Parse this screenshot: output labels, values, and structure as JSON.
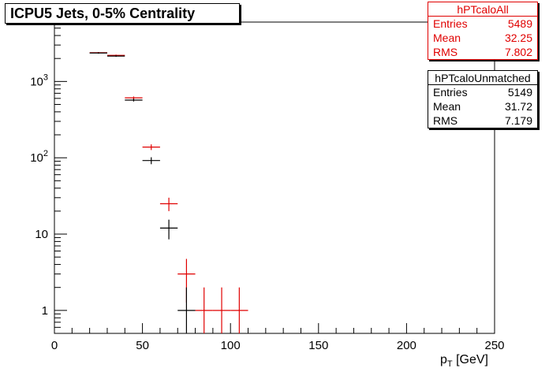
{
  "title": "ICPU5 Jets, 0-5% Centrality",
  "stats_all": {
    "name": "hPTcaloAll",
    "entries_label": "Entries",
    "entries": "5489",
    "mean_label": "Mean",
    "mean": "32.25",
    "rms_label": "RMS",
    "rms": "7.802",
    "color": "#e00000"
  },
  "stats_unmatched": {
    "name": "hPTcaloUnmatched",
    "entries_label": "Entries",
    "entries": "5149",
    "mean_label": "Mean",
    "mean": "31.72",
    "rms_label": "RMS",
    "rms": "7.179",
    "color": "#000000"
  },
  "chart_data": {
    "type": "scatter",
    "title": "ICPU5 Jets, 0-5% Centrality",
    "xlabel": "p_T [GeV]",
    "ylabel": "",
    "xlim": [
      0,
      250
    ],
    "ylim": [
      0.5,
      6000
    ],
    "yscale": "log",
    "grid": false,
    "x_ticks": [
      "0",
      "50",
      "100",
      "150",
      "200",
      "250"
    ],
    "y_ticks": [
      "1",
      "10",
      "10^2",
      "10^3"
    ],
    "bin_width": 10,
    "series": [
      {
        "name": "hPTcaloAll",
        "color": "#e00000",
        "points": [
          {
            "x": 25,
            "y": 2380
          },
          {
            "x": 35,
            "y": 2200
          },
          {
            "x": 45,
            "y": 610
          },
          {
            "x": 55,
            "y": 138
          },
          {
            "x": 65,
            "y": 25
          },
          {
            "x": 75,
            "y": 3
          },
          {
            "x": 85,
            "y": 1
          },
          {
            "x": 95,
            "y": 1
          },
          {
            "x": 105,
            "y": 1
          }
        ]
      },
      {
        "name": "hPTcaloUnmatched",
        "color": "#000000",
        "points": [
          {
            "x": 25,
            "y": 2360
          },
          {
            "x": 35,
            "y": 2150
          },
          {
            "x": 45,
            "y": 570
          },
          {
            "x": 55,
            "y": 92
          },
          {
            "x": 65,
            "y": 12
          },
          {
            "x": 75,
            "y": 1
          }
        ]
      }
    ]
  }
}
